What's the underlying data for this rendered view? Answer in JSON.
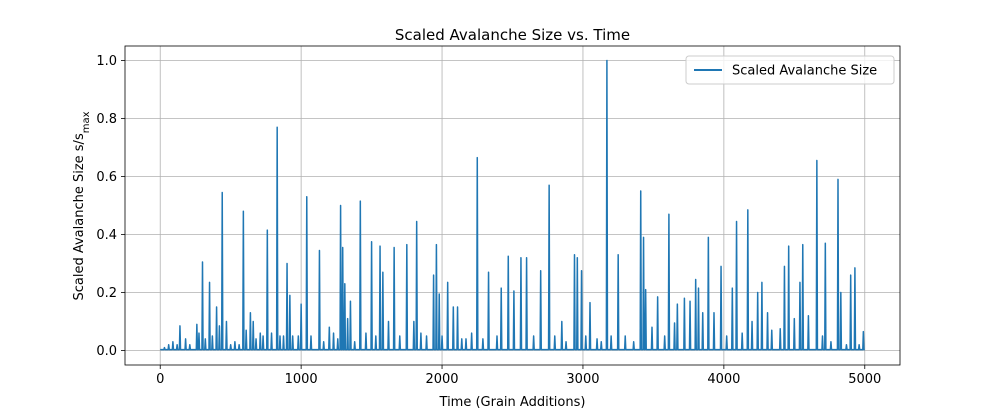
{
  "chart_data": {
    "type": "line",
    "title": "Scaled Avalanche Size vs. Time",
    "xlabel": "Time (Grain Additions)",
    "ylabel": "Scaled Avalanche Size s/s",
    "ylabel_subscript": "max",
    "xlim": [
      -250,
      5250
    ],
    "ylim": [
      -0.05,
      1.05
    ],
    "xticks": [
      0,
      1000,
      2000,
      3000,
      4000,
      5000
    ],
    "xtick_labels": [
      "0",
      "1000",
      "2000",
      "3000",
      "4000",
      "5000"
    ],
    "yticks": [
      0.0,
      0.2,
      0.4,
      0.6,
      0.8,
      1.0
    ],
    "ytick_labels": [
      "0.0",
      "0.2",
      "0.4",
      "0.6",
      "0.8",
      "1.0"
    ],
    "grid": true,
    "legend_position": "upper right",
    "series": [
      {
        "name": "Scaled Avalanche Size",
        "color": "#1f77b4",
        "baseline": 0.003,
        "spikes": [
          [
            30,
            0.01
          ],
          [
            60,
            0.02
          ],
          [
            90,
            0.03
          ],
          [
            120,
            0.02
          ],
          [
            140,
            0.085
          ],
          [
            180,
            0.04
          ],
          [
            210,
            0.02
          ],
          [
            260,
            0.09
          ],
          [
            275,
            0.06
          ],
          [
            300,
            0.305
          ],
          [
            320,
            0.04
          ],
          [
            350,
            0.235
          ],
          [
            370,
            0.05
          ],
          [
            400,
            0.15
          ],
          [
            420,
            0.085
          ],
          [
            440,
            0.545
          ],
          [
            470,
            0.1
          ],
          [
            500,
            0.02
          ],
          [
            530,
            0.03
          ],
          [
            560,
            0.02
          ],
          [
            590,
            0.48
          ],
          [
            610,
            0.07
          ],
          [
            640,
            0.13
          ],
          [
            660,
            0.1
          ],
          [
            680,
            0.04
          ],
          [
            710,
            0.06
          ],
          [
            730,
            0.05
          ],
          [
            760,
            0.415
          ],
          [
            790,
            0.06
          ],
          [
            830,
            0.77
          ],
          [
            850,
            0.05
          ],
          [
            875,
            0.05
          ],
          [
            900,
            0.3
          ],
          [
            920,
            0.19
          ],
          [
            940,
            0.05
          ],
          [
            980,
            0.05
          ],
          [
            1000,
            0.16
          ],
          [
            1040,
            0.53
          ],
          [
            1070,
            0.05
          ],
          [
            1130,
            0.345
          ],
          [
            1160,
            0.03
          ],
          [
            1200,
            0.08
          ],
          [
            1230,
            0.06
          ],
          [
            1260,
            0.04
          ],
          [
            1280,
            0.5
          ],
          [
            1295,
            0.355
          ],
          [
            1310,
            0.23
          ],
          [
            1330,
            0.11
          ],
          [
            1350,
            0.17
          ],
          [
            1380,
            0.03
          ],
          [
            1420,
            0.515
          ],
          [
            1460,
            0.06
          ],
          [
            1500,
            0.375
          ],
          [
            1530,
            0.05
          ],
          [
            1560,
            0.36
          ],
          [
            1580,
            0.27
          ],
          [
            1620,
            0.1
          ],
          [
            1660,
            0.355
          ],
          [
            1700,
            0.05
          ],
          [
            1750,
            0.365
          ],
          [
            1800,
            0.1
          ],
          [
            1820,
            0.445
          ],
          [
            1850,
            0.06
          ],
          [
            1890,
            0.05
          ],
          [
            1940,
            0.26
          ],
          [
            1960,
            0.365
          ],
          [
            1980,
            0.195
          ],
          [
            2000,
            0.05
          ],
          [
            2040,
            0.235
          ],
          [
            2080,
            0.15
          ],
          [
            2110,
            0.15
          ],
          [
            2140,
            0.04
          ],
          [
            2170,
            0.04
          ],
          [
            2210,
            0.06
          ],
          [
            2250,
            0.665
          ],
          [
            2290,
            0.04
          ],
          [
            2330,
            0.27
          ],
          [
            2390,
            0.05
          ],
          [
            2420,
            0.215
          ],
          [
            2470,
            0.325
          ],
          [
            2510,
            0.205
          ],
          [
            2560,
            0.32
          ],
          [
            2600,
            0.32
          ],
          [
            2650,
            0.05
          ],
          [
            2700,
            0.275
          ],
          [
            2760,
            0.57
          ],
          [
            2800,
            0.05
          ],
          [
            2850,
            0.1
          ],
          [
            2880,
            0.03
          ],
          [
            2940,
            0.33
          ],
          [
            2960,
            0.32
          ],
          [
            2990,
            0.275
          ],
          [
            3020,
            0.05
          ],
          [
            3050,
            0.165
          ],
          [
            3100,
            0.04
          ],
          [
            3130,
            0.03
          ],
          [
            3170,
            1.0
          ],
          [
            3200,
            0.05
          ],
          [
            3250,
            0.33
          ],
          [
            3300,
            0.05
          ],
          [
            3360,
            0.03
          ],
          [
            3410,
            0.55
          ],
          [
            3430,
            0.39
          ],
          [
            3445,
            0.21
          ],
          [
            3490,
            0.08
          ],
          [
            3530,
            0.185
          ],
          [
            3580,
            0.05
          ],
          [
            3610,
            0.47
          ],
          [
            3650,
            0.095
          ],
          [
            3670,
            0.16
          ],
          [
            3720,
            0.18
          ],
          [
            3760,
            0.17
          ],
          [
            3800,
            0.245
          ],
          [
            3820,
            0.215
          ],
          [
            3850,
            0.13
          ],
          [
            3890,
            0.39
          ],
          [
            3930,
            0.13
          ],
          [
            3980,
            0.29
          ],
          [
            4020,
            0.05
          ],
          [
            4060,
            0.215
          ],
          [
            4090,
            0.445
          ],
          [
            4130,
            0.06
          ],
          [
            4170,
            0.485
          ],
          [
            4200,
            0.1
          ],
          [
            4240,
            0.2
          ],
          [
            4270,
            0.235
          ],
          [
            4310,
            0.13
          ],
          [
            4340,
            0.07
          ],
          [
            4400,
            0.075
          ],
          [
            4430,
            0.29
          ],
          [
            4460,
            0.36
          ],
          [
            4500,
            0.11
          ],
          [
            4540,
            0.235
          ],
          [
            4560,
            0.365
          ],
          [
            4600,
            0.12
          ],
          [
            4660,
            0.655
          ],
          [
            4700,
            0.05
          ],
          [
            4720,
            0.37
          ],
          [
            4760,
            0.03
          ],
          [
            4810,
            0.59
          ],
          [
            4830,
            0.2
          ],
          [
            4870,
            0.02
          ],
          [
            4900,
            0.26
          ],
          [
            4930,
            0.285
          ],
          [
            4960,
            0.02
          ],
          [
            4990,
            0.065
          ]
        ]
      }
    ]
  }
}
